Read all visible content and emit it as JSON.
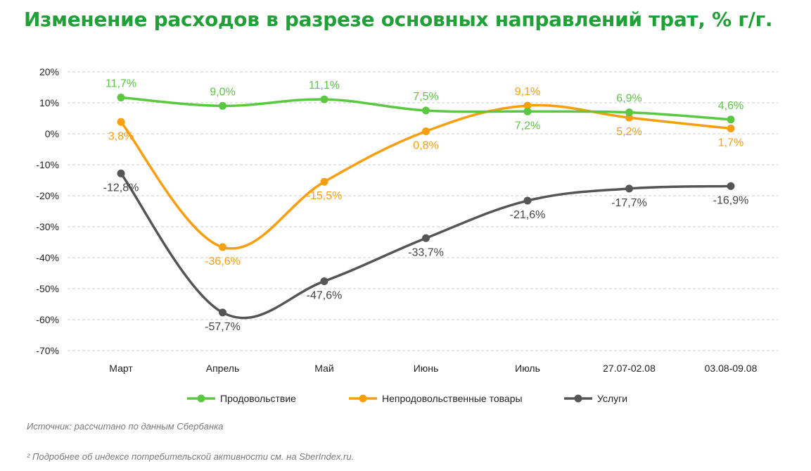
{
  "chart_data": {
    "type": "line",
    "title": "Изменение расходов в разрезе основных направлений трат, % г/г.",
    "categories": [
      "Март",
      "Апрель",
      "Май",
      "Июнь",
      "Июль",
      "27.07-02.08",
      "03.08-09.08"
    ],
    "y_ticks": [
      "20%",
      "10%",
      "0%",
      "-10%",
      "-20%",
      "-30%",
      "-40%",
      "-50%",
      "-60%",
      "-70%"
    ],
    "ylim": [
      -70,
      20
    ],
    "grid": true,
    "legend_position": "bottom",
    "series": [
      {
        "name": "Продовольствие",
        "color": "#5ac840",
        "values": [
          11.7,
          9.0,
          11.1,
          7.5,
          7.2,
          6.9,
          4.6
        ],
        "labels": [
          "11,7%",
          "9,0%",
          "11,1%",
          "7,5%",
          "7,2%",
          "6,9%",
          "4,6%"
        ],
        "label_pos": [
          "above",
          "above",
          "above",
          "above",
          "below",
          "above",
          "above"
        ]
      },
      {
        "name": "Непродовольственные товары",
        "color": "#f99e0f",
        "values": [
          3.8,
          -36.6,
          -15.5,
          0.8,
          9.1,
          5.2,
          1.7
        ],
        "labels": [
          "3,8%",
          "-36,6%",
          "-15,5%",
          "0,8%",
          "9,1%",
          "5,2%",
          "1,7%"
        ],
        "label_pos": [
          "below",
          "below",
          "below",
          "below",
          "above",
          "below",
          "below"
        ]
      },
      {
        "name": "Услуги",
        "color": "#555555",
        "values": [
          -12.8,
          -57.7,
          -47.6,
          -33.7,
          -21.6,
          -17.7,
          -16.9
        ],
        "labels": [
          "-12,8%",
          "-57,7%",
          "-47,6%",
          "-33,7%",
          "-21,6%",
          "-17,7%",
          "-16,9%"
        ],
        "label_pos": [
          "below",
          "below",
          "below",
          "below",
          "below",
          "below",
          "below"
        ]
      }
    ]
  },
  "title_color": "#21a038",
  "source_text": "Источник: рассчитано по данным Сбербанка",
  "footnote_text": "² Подробнее об индексе потребительской активности см. на SberIndex.ru."
}
